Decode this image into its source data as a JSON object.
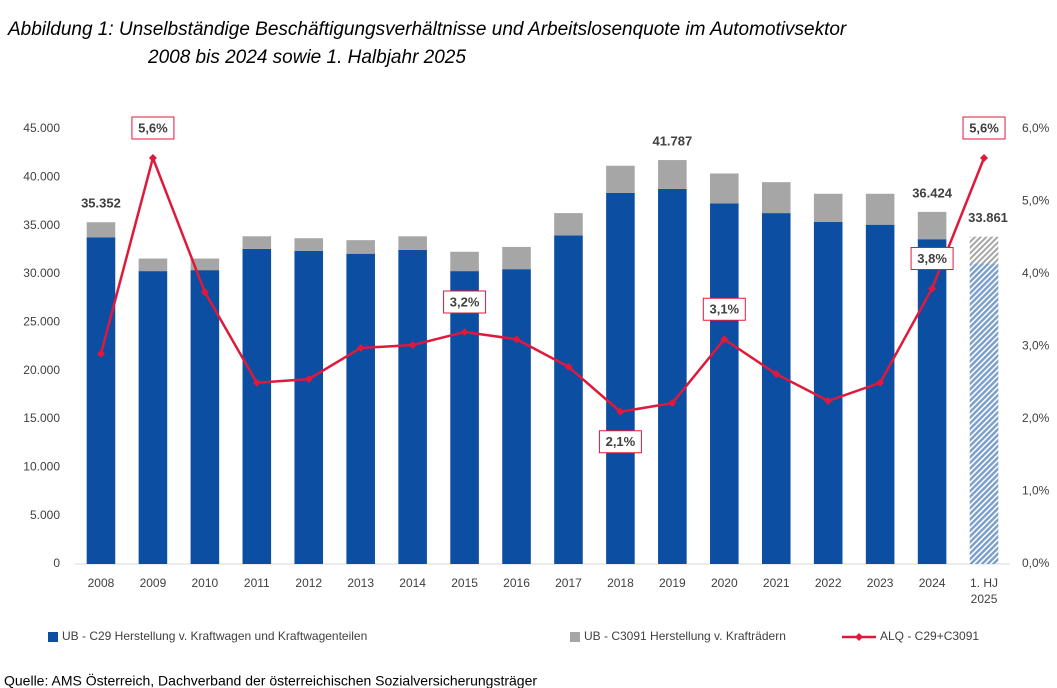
{
  "chart_data": {
    "type": "bar_line",
    "title": "Abbildung 1: Unselbständige Beschäftigungsverhältnisse und Arbeitslosenquote im Automotivsektor",
    "subtitle": "2008 bis 2024 sowie 1. Halbjahr 2025",
    "categories": [
      "2008",
      "2009",
      "2010",
      "2011",
      "2012",
      "2013",
      "2014",
      "2015",
      "2016",
      "2017",
      "2018",
      "2019",
      "2020",
      "2021",
      "2022",
      "2023",
      "2024",
      "1. HJ 2025"
    ],
    "series": [
      {
        "name": "UB - C29 Herstellung v. Kraftwagen und Kraftwagenteilen",
        "color": "#0b4ea2",
        "values": [
          33800,
          30300,
          30400,
          32600,
          32400,
          32100,
          32500,
          30300,
          30500,
          34000,
          38400,
          38800,
          37300,
          36300,
          35400,
          35100,
          33600,
          31100
        ]
      },
      {
        "name": "UB - C3091 Herstellung v. Krafträdern",
        "color": "#a6a6a6",
        "values": [
          1552,
          1300,
          1200,
          1300,
          1300,
          1400,
          1400,
          2000,
          2300,
          2300,
          2800,
          2987,
          3100,
          3200,
          2900,
          3200,
          2824,
          2761
        ]
      },
      {
        "name": "ALQ - C29+C3091",
        "color": "#e0193c",
        "axis": "y2",
        "values": [
          2.9,
          5.6,
          3.75,
          2.5,
          2.55,
          2.98,
          3.02,
          3.2,
          3.1,
          2.72,
          2.1,
          2.22,
          3.1,
          2.62,
          2.25,
          2.5,
          3.8,
          5.6
        ],
        "value_labels": [
          null,
          "5,6%",
          null,
          null,
          null,
          null,
          null,
          "3,2%",
          null,
          null,
          "2,1%",
          null,
          "3,1%",
          null,
          null,
          null,
          "3,8%",
          "5,6%"
        ]
      }
    ],
    "totals": [
      35352,
      null,
      null,
      null,
      null,
      null,
      null,
      null,
      null,
      null,
      null,
      41787,
      null,
      null,
      null,
      null,
      36424,
      33861
    ],
    "totals_labels": [
      "35.352",
      null,
      null,
      null,
      null,
      null,
      null,
      null,
      null,
      null,
      null,
      "41.787",
      null,
      null,
      null,
      null,
      "36.424",
      "33.861"
    ],
    "hatched_last": true,
    "ylim": [
      0,
      45000
    ],
    "yticks": [
      0,
      {
        "value": 5000,
        "label": "5.000"
      },
      {
        "value": 10000,
        "label": "10.000"
      },
      {
        "value": 15000,
        "label": "15.000"
      },
      {
        "value": 20000,
        "label": "20.000"
      },
      {
        "value": 25000,
        "label": "25.000"
      },
      {
        "value": 30000,
        "label": "30.000"
      },
      {
        "value": 35000,
        "label": "35.000"
      },
      {
        "value": 40000,
        "label": "40.000"
      },
      {
        "value": 45000,
        "label": "45.000"
      }
    ],
    "y2lim": [
      0,
      6
    ],
    "y2ticks": [
      {
        "value": 0,
        "label": "0,0%"
      },
      {
        "value": 1,
        "label": "1,0%"
      },
      {
        "value": 2,
        "label": "2,0%"
      },
      {
        "value": 3,
        "label": "3,0%"
      },
      {
        "value": 4,
        "label": "4,0%"
      },
      {
        "value": 5,
        "label": "5,0%"
      },
      {
        "value": 6,
        "label": "6,0%"
      }
    ],
    "source": "Quelle: AMS Österreich, Dachverband der österreichischen Sozialversicherungsträger"
  }
}
